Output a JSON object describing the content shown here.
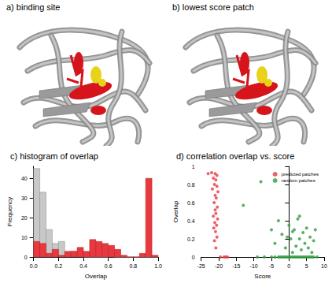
{
  "panels": [
    {
      "title": "a) binding site"
    },
    {
      "title": "b) lowest score patch"
    }
  ],
  "chart_data": [
    {
      "type": "histogram",
      "title": "c) histogram of overlap",
      "x_label": "Overlap",
      "y_label": "Frequency",
      "bins": [
        0,
        0.05,
        0.1,
        0.15,
        0.2,
        0.25,
        0.3,
        0.35,
        0.4,
        0.45,
        0.5,
        0.55,
        0.6,
        0.65,
        0.7,
        0.75,
        0.8,
        0.85,
        0.9,
        0.95,
        1
      ],
      "series": [
        {
          "color": "#c8c8c8",
          "values": [
            45,
            33,
            14,
            7,
            8,
            1,
            3,
            1,
            0,
            0,
            0,
            0,
            1,
            0,
            0,
            0,
            0,
            0,
            0,
            0
          ]
        },
        {
          "color": "#e8393f",
          "values": [
            8,
            7,
            2,
            4,
            1,
            3,
            3,
            5,
            3,
            9,
            8,
            7,
            6,
            4,
            1,
            0,
            0,
            2,
            40,
            1
          ]
        }
      ],
      "xlim": [
        0,
        1
      ],
      "xticks": [
        {
          "value": 0,
          "label": "0.0"
        },
        0.2,
        0.4,
        0.6,
        0.8,
        {
          "value": 1,
          "label": "1.0"
        }
      ],
      "ylim": [
        0,
        46
      ],
      "yticks": [
        0,
        10,
        20,
        30,
        40
      ],
      "grid": false
    },
    {
      "type": "scatter",
      "title": "d) correlation overlap vs. score",
      "x_label": "Score",
      "y_label": "Overlap",
      "series": [
        {
          "name": "predicted patches",
          "color": "#e8393f",
          "x": [
            -23,
            -22,
            -21,
            -20.5,
            -21.5,
            -20.8,
            -21.2,
            -20.5,
            -21.8,
            -20.2,
            -21,
            -20.7,
            -21.3,
            -20.4,
            -21,
            -20.8,
            -21.5,
            -20.3,
            -21.1,
            -20.6,
            -21.4,
            -20.9,
            -20.5,
            -21.2,
            -20.8,
            -18.5,
            -18,
            -17.5,
            -19.5
          ],
          "values": [
            0.92,
            0.93,
            0.92,
            0.9,
            0.87,
            0.85,
            0.8,
            0.78,
            0.75,
            0.72,
            0.68,
            0.65,
            0.6,
            0.55,
            0.52,
            0.48,
            0.45,
            0.42,
            0.38,
            0.35,
            0.32,
            0.28,
            0.22,
            0.18,
            0.1,
            0,
            0,
            0,
            0
          ]
        },
        {
          "name": "random patches",
          "color": "#2e9e3e",
          "x": [
            -9,
            -7,
            -5,
            -4,
            -3,
            -2.5,
            -2,
            -1.5,
            -1,
            -0.5,
            0,
            0.5,
            1,
            1.5,
            2,
            2.5,
            3,
            3.5,
            4,
            4.5,
            5,
            5.5,
            6,
            6.5,
            7,
            8,
            -13,
            -8,
            -5,
            -4,
            -3,
            -2,
            -1,
            0,
            0.5,
            1,
            1.5,
            2,
            2.5,
            3,
            3.5,
            4,
            4.5,
            5,
            5.5,
            6,
            6.5,
            7,
            7.5,
            3,
            -0.5,
            1
          ],
          "values": [
            0,
            0,
            0,
            0,
            0,
            0,
            0,
            0,
            0,
            0,
            0,
            0,
            0,
            0,
            0,
            0,
            0,
            0,
            0,
            0,
            0,
            0,
            0,
            0,
            0,
            0,
            0.57,
            0.83,
            0.3,
            0.15,
            0.4,
            0.25,
            0.1,
            0.35,
            0.2,
            0.05,
            0.3,
            0.12,
            0.42,
            0.2,
            0.08,
            0.27,
            0.15,
            0.32,
            0.1,
            0.22,
            0.05,
            0.18,
            0.3,
            0.45,
            0.22,
            0.28
          ]
        }
      ],
      "xlim": [
        -25,
        10
      ],
      "xticks": [
        -25,
        -20,
        -15,
        -10,
        -5,
        0,
        5,
        10
      ],
      "ylim": [
        0,
        1
      ],
      "yticks": [
        0,
        0.2,
        0.4,
        0.6,
        0.8,
        1
      ],
      "legend": "top-right",
      "marker": "circle",
      "grid": false
    }
  ]
}
